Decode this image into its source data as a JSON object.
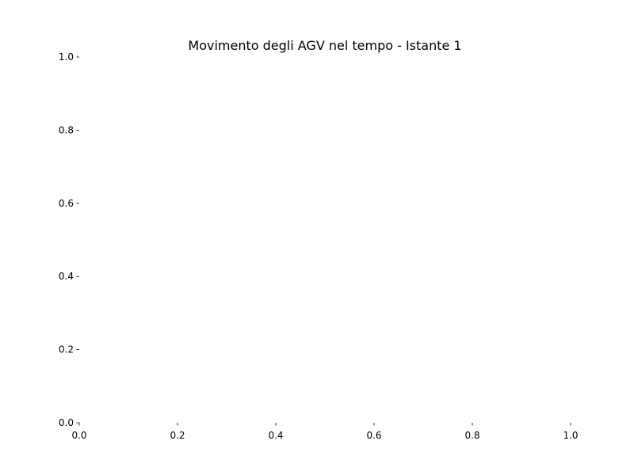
{
  "chart_data": {
    "type": "scatter",
    "title": "Movimento degli AGV nel tempo - Istante 1",
    "xlabel": "",
    "ylabel": "",
    "xlim": [
      0.0,
      1.0
    ],
    "ylim": [
      0.0,
      1.0
    ],
    "x_ticks": [
      "0.0",
      "0.2",
      "0.4",
      "0.6",
      "0.8",
      "1.0"
    ],
    "y_ticks": [
      "0.0",
      "0.2",
      "0.4",
      "0.6",
      "0.8",
      "1.0"
    ],
    "grid": false,
    "series": []
  }
}
